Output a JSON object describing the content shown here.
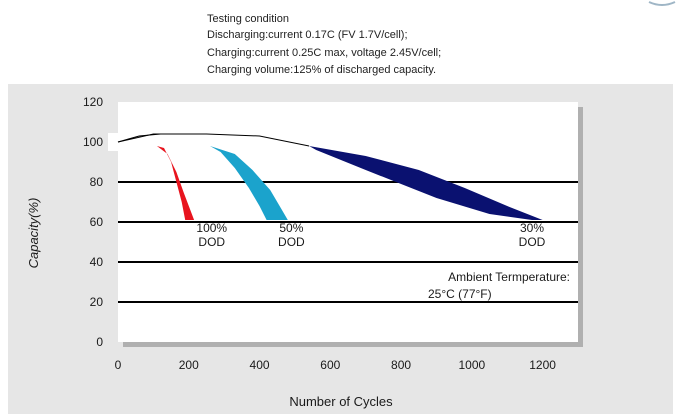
{
  "condition": {
    "heading": "Testing condition",
    "line1": "Discharging:current 0.17C (FV 1.7V/cell);",
    "line2": "Charging:current 0.25C max, voltage 2.45V/cell;",
    "line3": "Charging volume:125% of discharged capacity."
  },
  "ambient": {
    "label": "Ambient Termperature:",
    "value": "25°C (77°F)"
  },
  "colors": {
    "dod100": "#e8141e",
    "dod50": "#1ba3cc",
    "dod30": "#0a1170",
    "panel": "#e6e6e6",
    "grid": "#000000"
  },
  "chart_data": {
    "type": "area",
    "title": "",
    "xlabel": "Number of Cycles",
    "ylabel": "Capacity(%)",
    "xlim": [
      0,
      1300
    ],
    "ylim": [
      0,
      120
    ],
    "xticks": [
      "0",
      "200",
      "400",
      "600",
      "800",
      "1000",
      "1200"
    ],
    "yticks": [
      "0",
      "20",
      "40",
      "60",
      "80",
      "100",
      "120"
    ],
    "gridlines_y": [
      20,
      40,
      60,
      80
    ],
    "series": [
      {
        "name": "100% DOD",
        "label_lines": [
          "100%",
          "DOD"
        ],
        "color_key": "dod100",
        "upper": [
          [
            110,
            98
          ],
          [
            140,
            94
          ],
          [
            165,
            85
          ],
          [
            185,
            75
          ],
          [
            200,
            68
          ],
          [
            215,
            61
          ]
        ],
        "lower": [
          [
            190,
            61
          ],
          [
            180,
            70
          ],
          [
            165,
            80
          ],
          [
            150,
            90
          ],
          [
            130,
            97
          ],
          [
            110,
            98
          ]
        ],
        "label_at": [
          265,
          55
        ]
      },
      {
        "name": "50% DOD",
        "label_lines": [
          "50%",
          "DOD"
        ],
        "color_key": "dod50",
        "upper": [
          [
            260,
            98
          ],
          [
            330,
            94
          ],
          [
            380,
            86
          ],
          [
            430,
            76
          ],
          [
            460,
            67
          ],
          [
            480,
            61
          ]
        ],
        "lower": [
          [
            420,
            61
          ],
          [
            400,
            68
          ],
          [
            370,
            77
          ],
          [
            330,
            87
          ],
          [
            290,
            95
          ],
          [
            260,
            98
          ]
        ],
        "label_at": [
          490,
          55
        ]
      },
      {
        "name": "30% DOD",
        "label_lines": [
          "30%",
          "DOD"
        ],
        "color_key": "dod30",
        "upper": [
          [
            540,
            98
          ],
          [
            700,
            93
          ],
          [
            850,
            86
          ],
          [
            980,
            77
          ],
          [
            1100,
            68
          ],
          [
            1200,
            61
          ]
        ],
        "lower": [
          [
            1170,
            61
          ],
          [
            1050,
            64
          ],
          [
            900,
            72
          ],
          [
            800,
            79
          ],
          [
            700,
            86
          ],
          [
            560,
            96
          ],
          [
            540,
            98
          ]
        ],
        "label_at": [
          1170,
          55
        ]
      }
    ],
    "initial_curve": [
      [
        0,
        100
      ],
      [
        60,
        103
      ],
      [
        120,
        104
      ],
      [
        250,
        104
      ],
      [
        400,
        103
      ],
      [
        540,
        98
      ]
    ],
    "initial_curve_2": [
      [
        0,
        100
      ],
      [
        100,
        104
      ],
      [
        200,
        104
      ]
    ]
  }
}
